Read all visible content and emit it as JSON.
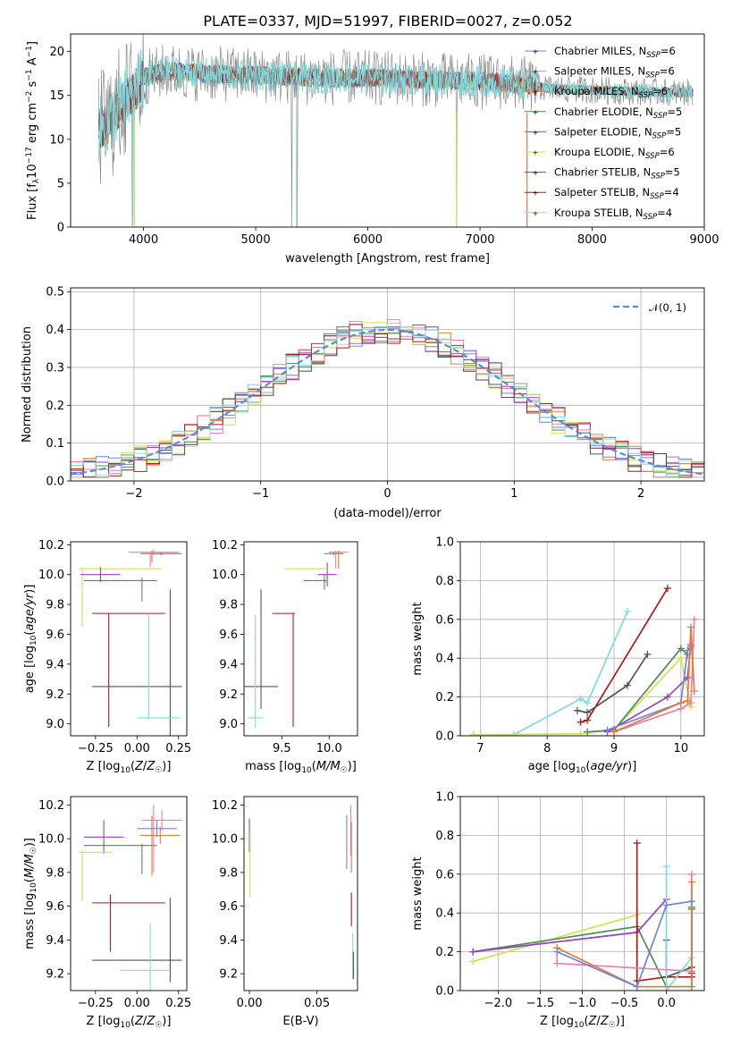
{
  "title": "PLATE=0337, MJD=51997, FIBERID=0027, z=0.052",
  "colors": {
    "chabrier_miles": "#6f86d6",
    "salpeter_miles": "#e77fb3",
    "kroupa_miles": "#e07b39",
    "chabrier_elodie": "#4f8a5a",
    "salpeter_elodie": "#9a3fc0",
    "kroupa_elodie": "#d3e14f",
    "chabrier_stelib": "#555555",
    "salpeter_stelib": "#b0181a",
    "kroupa_stelib": "#7ddbe0",
    "data": "#8c8c8c",
    "gauss": "#5b8ad6"
  },
  "chart_data": [
    {
      "id": "spectrum",
      "type": "line",
      "title": "PLATE=0337, MJD=51997, FIBERID=0027, z=0.052",
      "xlabel": "wavelength [Angstrom, rest frame]",
      "ylabel": "Flux [f_λ10^-17 erg cm^-2 s^-1 A^-1]",
      "xlim": [
        3350,
        9000
      ],
      "ylim": [
        0,
        22
      ],
      "xticks": [
        "4000",
        "5000",
        "6000",
        "7000",
        "8000",
        "9000"
      ],
      "yticks": [
        "0",
        "5",
        "10",
        "15",
        "20"
      ],
      "grid": false,
      "legend_position": "right",
      "legend": [
        "Chabrier MILES, N_SSP=6",
        "Salpeter MILES, N_SSP=6",
        "Kroupa MILES, N_SSP=6",
        "Chabrier ELODIE, N_SSP=5",
        "Salpeter ELODIE, N_SSP=5",
        "Kroupa ELODIE, N_SSP=6",
        "Chabrier STELIB, N_SSP=5",
        "Salpeter STELIB, N_SSP=4",
        "Kroupa STELIB, N_SSP=4"
      ],
      "continuum": [
        [
          3600,
          11
        ],
        [
          3700,
          12
        ],
        [
          3800,
          14
        ],
        [
          3900,
          15
        ],
        [
          4000,
          17
        ],
        [
          4200,
          17.8
        ],
        [
          4500,
          17.5
        ],
        [
          5000,
          17.3
        ],
        [
          5500,
          17
        ],
        [
          6000,
          17
        ],
        [
          6500,
          16.8
        ],
        [
          7000,
          16.6
        ],
        [
          7400,
          16.3
        ],
        [
          7600,
          15.8
        ],
        [
          8000,
          15.6
        ],
        [
          8500,
          15.4
        ],
        [
          8900,
          15.3
        ]
      ]
    },
    {
      "id": "residuals",
      "type": "histogram",
      "xlabel": "(data-model)/error",
      "ylabel": "Normed distribution",
      "xlim": [
        -2.5,
        2.5
      ],
      "ylim": [
        0,
        0.51
      ],
      "xticks": [
        "−2",
        "−1",
        "0",
        "1",
        "2"
      ],
      "yticks": [
        "0.0",
        "0.1",
        "0.2",
        "0.3",
        "0.4",
        "0.5"
      ],
      "grid": true,
      "legend": [
        "𝒩(0, 1)"
      ],
      "legend_position": "top-right",
      "bin_width": 0.1,
      "series_from_normal": true
    },
    {
      "id": "age_vs_Z",
      "type": "errorbar",
      "xlabel": "Z [log10(Z/Z☉)]",
      "ylabel": "age  [log10(age/yr)]",
      "xlim": [
        -0.4,
        0.3
      ],
      "ylim": [
        8.92,
        10.22
      ],
      "xticks": [
        "−0.25",
        "0.00",
        "0.25"
      ],
      "yticks": [
        "9.0",
        "9.2",
        "9.4",
        "9.6",
        "9.8",
        "10.0",
        "10.2"
      ],
      "points": [
        {
          "c": "kroupa_elodie",
          "x": -0.1,
          "xe": 0.25,
          "y": 10.04,
          "ye": 0.0
        },
        {
          "c": "kroupa_elodie",
          "x": -0.33,
          "xe": 0.0,
          "y": 9.85,
          "ye": 0.2
        },
        {
          "c": "salpeter_elodie",
          "x": -0.22,
          "xe": 0.12,
          "y": 10.0,
          "ye": 0.05
        },
        {
          "c": "chabrier_elodie",
          "x": -0.1,
          "xe": 0.22,
          "y": 9.96,
          "ye": 0.0
        },
        {
          "c": "chabrier_elodie",
          "x": 0.03,
          "xe": 0.0,
          "y": 9.9,
          "ye": 0.08
        },
        {
          "c": "salpeter_stelib",
          "x": -0.05,
          "xe": 0.22,
          "y": 9.74,
          "ye": 0.0
        },
        {
          "c": "salpeter_stelib",
          "x": -0.17,
          "xe": 0.0,
          "y": 9.36,
          "ye": 0.38
        },
        {
          "c": "chabrier_stelib",
          "x": 0.0,
          "xe": 0.27,
          "y": 9.25,
          "ye": 0.0
        },
        {
          "c": "chabrier_stelib",
          "x": 0.2,
          "xe": 0.0,
          "y": 9.35,
          "ye": 0.55
        },
        {
          "c": "kroupa_stelib",
          "x": 0.13,
          "xe": 0.13,
          "y": 9.04,
          "ye": 0.0
        },
        {
          "c": "kroupa_stelib",
          "x": 0.07,
          "xe": 0.0,
          "y": 9.38,
          "ye": 0.35
        },
        {
          "c": "chabrier_miles",
          "x": 0.15,
          "xe": 0.12,
          "y": 10.14,
          "ye": 0.01
        },
        {
          "c": "salpeter_miles",
          "x": 0.1,
          "xe": 0.15,
          "y": 10.15,
          "ye": 0.02
        },
        {
          "c": "kroupa_miles",
          "x": 0.14,
          "xe": 0.12,
          "y": 10.14,
          "ye": 0.01
        },
        {
          "c": "salpeter_miles",
          "x": 0.08,
          "xe": 0.0,
          "y": 10.1,
          "ye": 0.05
        },
        {
          "c": "kroupa_miles",
          "x": 0.09,
          "xe": 0.0,
          "y": 10.12,
          "ye": 0.04
        }
      ]
    },
    {
      "id": "age_vs_mass",
      "type": "errorbar",
      "xlabel": "mass [log10(M/M☉)]",
      "ylabel": "",
      "xlim": [
        9.1,
        10.3
      ],
      "ylim": [
        8.92,
        10.22
      ],
      "xticks": [
        "9.5",
        "10.0"
      ],
      "yticks": [
        "9.0",
        "9.2",
        "9.4",
        "9.6",
        "9.8",
        "10.0",
        "10.2"
      ],
      "points": [
        {
          "c": "kroupa_elodie",
          "x": 9.92,
          "xe": 0.0,
          "y": 10.04,
          "ye": 0.0
        },
        {
          "c": "kroupa_elodie",
          "x": 9.73,
          "xe": 0.2,
          "y": 10.04,
          "ye": 0.0
        },
        {
          "c": "salpeter_elodie",
          "x": 9.98,
          "xe": 0.1,
          "y": 10.0,
          "ye": 0.08
        },
        {
          "c": "chabrier_elodie",
          "x": 9.85,
          "xe": 0.12,
          "y": 9.96,
          "ye": 0.0
        },
        {
          "c": "chabrier_elodie",
          "x": 9.95,
          "xe": 0.0,
          "y": 9.95,
          "ye": 0.05
        },
        {
          "c": "salpeter_stelib",
          "x": 9.52,
          "xe": 0.12,
          "y": 9.74,
          "ye": 0.0
        },
        {
          "c": "salpeter_stelib",
          "x": 9.62,
          "xe": 0.0,
          "y": 9.36,
          "ye": 0.38
        },
        {
          "c": "chabrier_stelib",
          "x": 9.28,
          "xe": 0.0,
          "y": 9.5,
          "ye": 0.4
        },
        {
          "c": "chabrier_stelib",
          "x": 9.28,
          "xe": 0.18,
          "y": 9.25,
          "ye": 0.0
        },
        {
          "c": "kroupa_stelib",
          "x": 9.22,
          "xe": 0.0,
          "y": 9.35,
          "ye": 0.38
        },
        {
          "c": "kroupa_stelib",
          "x": 9.22,
          "xe": 0.08,
          "y": 9.04,
          "ye": 0.0
        },
        {
          "c": "chabrier_miles",
          "x": 10.05,
          "xe": 0.1,
          "y": 10.14,
          "ye": 0.01
        },
        {
          "c": "salpeter_miles",
          "x": 10.1,
          "xe": 0.1,
          "y": 10.15,
          "ye": 0.01
        },
        {
          "c": "kroupa_miles",
          "x": 10.05,
          "xe": 0.1,
          "y": 10.14,
          "ye": 0.01
        },
        {
          "c": "salpeter_miles",
          "x": 10.07,
          "xe": 0.0,
          "y": 10.1,
          "ye": 0.06
        },
        {
          "c": "kroupa_miles",
          "x": 10.1,
          "xe": 0.0,
          "y": 10.1,
          "ye": 0.06
        }
      ]
    },
    {
      "id": "weight_vs_age",
      "type": "line",
      "xlabel": "age  [log10(age/yr)]",
      "ylabel": "mass weight",
      "xlim": [
        6.7,
        10.35
      ],
      "ylim": [
        0,
        1
      ],
      "xticks": [
        "7",
        "8",
        "9",
        "10"
      ],
      "yticks": [
        "0.0",
        "0.2",
        "0.4",
        "0.6",
        "0.8",
        "1.0"
      ],
      "grid": true,
      "series": [
        {
          "c": "kroupa_stelib",
          "x": [
            6.9,
            7.5,
            8.5,
            8.6,
            9.2
          ],
          "y": [
            0.005,
            0.005,
            0.19,
            0.17,
            0.64
          ]
        },
        {
          "c": "salpeter_stelib",
          "x": [
            8.5,
            8.6,
            9.8
          ],
          "y": [
            0.07,
            0.08,
            0.76
          ]
        },
        {
          "c": "chabrier_stelib",
          "x": [
            8.45,
            8.6,
            9.2,
            9.5
          ],
          "y": [
            0.13,
            0.12,
            0.26,
            0.42
          ]
        },
        {
          "c": "kroupa_elodie",
          "x": [
            6.9,
            8.5,
            9.0,
            10.0,
            10.15
          ],
          "y": [
            0.005,
            0.01,
            0.03,
            0.4,
            0.15
          ]
        },
        {
          "c": "chabrier_elodie",
          "x": [
            8.6,
            9.0,
            10.0,
            10.1
          ],
          "y": [
            0.02,
            0.03,
            0.45,
            0.42
          ]
        },
        {
          "c": "salpeter_elodie",
          "x": [
            8.9,
            9.8,
            10.1,
            10.15
          ],
          "y": [
            0.02,
            0.2,
            0.3,
            0.47
          ]
        },
        {
          "c": "chabrier_miles",
          "x": [
            8.9,
            10.0,
            10.1,
            10.15
          ],
          "y": [
            0.03,
            0.17,
            0.44,
            0.46
          ]
        },
        {
          "c": "salpeter_miles",
          "x": [
            9.0,
            10.0,
            10.15,
            10.2
          ],
          "y": [
            0.02,
            0.14,
            0.17,
            0.6
          ]
        },
        {
          "c": "kroupa_miles",
          "x": [
            9.0,
            10.0,
            10.1,
            10.15,
            10.2
          ],
          "y": [
            0.02,
            0.17,
            0.18,
            0.56,
            0.23
          ]
        }
      ]
    },
    {
      "id": "mass_vs_Z",
      "type": "errorbar",
      "xlabel": "Z [log10(Z/Z☉)]",
      "ylabel": "mass [log10(M/M☉)]",
      "xlim": [
        -0.4,
        0.3
      ],
      "ylim": [
        9.1,
        10.25
      ],
      "xticks": [
        "−0.25",
        "0.00",
        "0.25"
      ],
      "yticks": [
        "9.2",
        "9.4",
        "9.6",
        "9.8",
        "10.0",
        "10.2"
      ],
      "points": [
        {
          "c": "salpeter_elodie",
          "x": -0.2,
          "xe": 0.12,
          "y": 10.01,
          "ye": 0.1
        },
        {
          "c": "chabrier_elodie",
          "x": -0.1,
          "xe": 0.22,
          "y": 9.96,
          "ye": 0.0
        },
        {
          "c": "chabrier_elodie",
          "x": 0.03,
          "xe": 0.0,
          "y": 9.88,
          "ye": 0.09
        },
        {
          "c": "kroupa_elodie",
          "x": -0.33,
          "xe": 0.0,
          "y": 9.78,
          "ye": 0.15
        },
        {
          "c": "kroupa_elodie",
          "x": -0.25,
          "xe": 0.1,
          "y": 9.92,
          "ye": 0.0
        },
        {
          "c": "salpeter_stelib",
          "x": -0.05,
          "xe": 0.22,
          "y": 9.62,
          "ye": 0.0
        },
        {
          "c": "salpeter_stelib",
          "x": -0.16,
          "xe": 0.0,
          "y": 9.5,
          "ye": 0.17
        },
        {
          "c": "chabrier_stelib",
          "x": 0.0,
          "xe": 0.27,
          "y": 9.28,
          "ye": 0.0
        },
        {
          "c": "chabrier_stelib",
          "x": 0.2,
          "xe": 0.0,
          "y": 9.4,
          "ye": 0.25
        },
        {
          "c": "kroupa_stelib",
          "x": 0.05,
          "xe": 0.15,
          "y": 9.22,
          "ye": 0.0
        },
        {
          "c": "kroupa_stelib",
          "x": 0.08,
          "xe": 0.0,
          "y": 9.3,
          "ye": 0.2
        },
        {
          "c": "chabrier_miles",
          "x": 0.12,
          "xe": 0.12,
          "y": 10.06,
          "ye": 0.05
        },
        {
          "c": "salpeter_miles",
          "x": 0.15,
          "xe": 0.12,
          "y": 10.11,
          "ye": 0.06
        },
        {
          "c": "kroupa_miles",
          "x": 0.14,
          "xe": 0.12,
          "y": 10.02,
          "ye": 0.05
        },
        {
          "c": "salpeter_miles",
          "x": 0.1,
          "xe": 0.0,
          "y": 10.0,
          "ye": 0.2
        },
        {
          "c": "kroupa_miles",
          "x": 0.09,
          "xe": 0.0,
          "y": 9.96,
          "ye": 0.18
        }
      ]
    },
    {
      "id": "mass_vs_ebv",
      "type": "errorbar",
      "xlabel": "E(B-V)",
      "ylabel": "",
      "xlim": [
        -0.004,
        0.08
      ],
      "ylim": [
        9.1,
        10.25
      ],
      "xticks": [
        "0.00",
        "0.05"
      ],
      "yticks": [
        "9.2",
        "9.4",
        "9.6",
        "9.8",
        "10.0",
        "10.2"
      ],
      "points": [
        {
          "c": "salpeter_elodie",
          "x": 0.0,
          "xe": 0.0,
          "y": 10.02,
          "ye": 0.1
        },
        {
          "c": "kroupa_elodie",
          "x": 0.0005,
          "xe": 0.0,
          "y": 9.85,
          "ye": 0.2
        },
        {
          "c": "chabrier_miles",
          "x": 0.072,
          "xe": 0.0,
          "y": 9.98,
          "ye": 0.16
        },
        {
          "c": "salpeter_miles",
          "x": 0.075,
          "xe": 0.0,
          "y": 10.05,
          "ye": 0.15
        },
        {
          "c": "kroupa_miles",
          "x": 0.0755,
          "xe": 0.0,
          "y": 9.95,
          "ye": 0.15
        },
        {
          "c": "salpeter_stelib",
          "x": 0.0755,
          "xe": 0.0,
          "y": 9.58,
          "ye": 0.1
        },
        {
          "c": "kroupa_stelib",
          "x": 0.0765,
          "xe": 0.0,
          "y": 9.3,
          "ye": 0.14
        },
        {
          "c": "chabrier_stelib",
          "x": 0.077,
          "xe": 0.0,
          "y": 9.25,
          "ye": 0.08
        }
      ]
    },
    {
      "id": "weight_vs_Z",
      "type": "line",
      "xlabel": "Z [log10(Z/Z☉)]",
      "ylabel": "mass weight",
      "xlim": [
        -2.45,
        0.45
      ],
      "ylim": [
        0,
        1
      ],
      "xticks": [
        "−2.0",
        "−1.5",
        "−1.0",
        "−0.5",
        "0.0"
      ],
      "yticks": [
        "0.0",
        "0.2",
        "0.4",
        "0.6",
        "0.8",
        "1.0"
      ],
      "grid": true,
      "series": [
        {
          "c": "kroupa_elodie",
          "x": [
            -2.3,
            -0.35,
            -0.35,
            0.0,
            0.3
          ],
          "y": [
            0.15,
            0.39,
            0.02,
            0.02,
            0.02
          ]
        },
        {
          "c": "chabrier_elodie",
          "x": [
            -2.3,
            -0.35,
            0.0,
            0.3,
            0.3
          ],
          "y": [
            0.2,
            0.33,
            0.02,
            0.02,
            0.43
          ]
        },
        {
          "c": "salpeter_elodie",
          "x": [
            -2.3,
            -0.35,
            0.0
          ],
          "y": [
            0.2,
            0.3,
            0.47
          ]
        },
        {
          "c": "salpeter_stelib",
          "x": [
            -0.35,
            -0.35,
            0.0,
            0.3,
            0.3
          ],
          "y": [
            0.76,
            0.05,
            0.07,
            0.07,
            0.09
          ]
        },
        {
          "c": "chabrier_stelib",
          "x": [
            0.0,
            0.0,
            0.3,
            0.3
          ],
          "y": [
            0.26,
            0.07,
            0.12,
            0.42
          ]
        },
        {
          "c": "kroupa_stelib",
          "x": [
            0.0,
            0.0,
            0.3
          ],
          "y": [
            0.64,
            0.0,
            0.17
          ]
        },
        {
          "c": "salpeter_miles",
          "x": [
            -1.3,
            -1.3,
            0.3,
            0.3
          ],
          "y": [
            0.22,
            0.14,
            0.1,
            0.6
          ]
        },
        {
          "c": "kroupa_miles",
          "x": [
            -1.3,
            -0.35,
            0.3,
            0.3
          ],
          "y": [
            0.22,
            0.02,
            0.02,
            0.56
          ]
        },
        {
          "c": "chabrier_miles",
          "x": [
            -1.3,
            -0.35,
            0.0,
            0.3
          ],
          "y": [
            0.2,
            0.02,
            0.44,
            0.46
          ]
        }
      ]
    }
  ]
}
